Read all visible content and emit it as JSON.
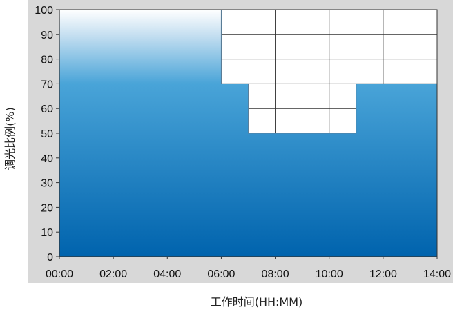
{
  "chart_data": {
    "type": "area",
    "title": "",
    "xlabel": "工作时间(HH:MM)",
    "ylabel": "调光比例(%)",
    "x_ticks": [
      "00:00",
      "02:00",
      "04:00",
      "06:00",
      "08:00",
      "10:00",
      "12:00",
      "14:00"
    ],
    "y_ticks": [
      0,
      10,
      20,
      30,
      40,
      50,
      60,
      70,
      80,
      90,
      100
    ],
    "xlim": [
      0,
      14
    ],
    "ylim": [
      0,
      100
    ],
    "x_unit": "hours",
    "series": [
      {
        "steps": [
          {
            "start": 0,
            "end": 6,
            "value": 100
          },
          {
            "start": 6,
            "end": 7,
            "value": 70
          },
          {
            "start": 7,
            "end": 11,
            "value": 50
          },
          {
            "start": 11,
            "end": 14,
            "value": 70
          }
        ]
      }
    ],
    "grid": true,
    "legend": "none",
    "colors": {
      "fill_top": "#ffffff",
      "fill_upper": "#c7e0f1",
      "fill_mid": "#49a4d8",
      "fill_bottom": "#0063ad",
      "grid": "#333333",
      "plot_background": "#ffffff",
      "outer_background": "#d8d8d8"
    }
  }
}
